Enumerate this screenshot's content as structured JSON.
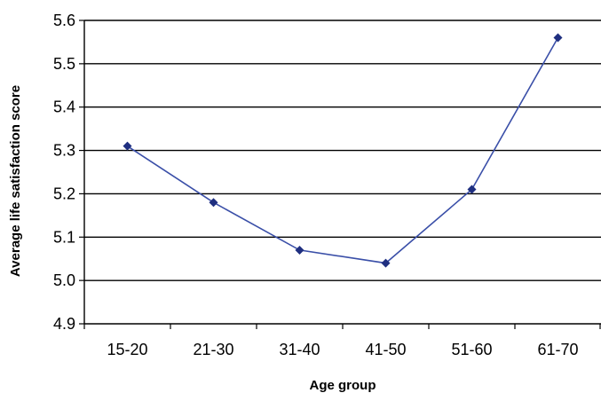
{
  "chart_data": {
    "type": "line",
    "title": "",
    "xlabel": "Age group",
    "ylabel": "Average life satisfaction score",
    "categories": [
      "15-20",
      "21-30",
      "31-40",
      "41-50",
      "51-60",
      "61-70"
    ],
    "series": [
      {
        "values": [
          5.31,
          5.18,
          5.07,
          5.04,
          5.21,
          5.56
        ],
        "color": "#3a4fa8"
      }
    ],
    "ylim": [
      4.9,
      5.6
    ],
    "yticks": [
      "4.9",
      "5.0",
      "5.1",
      "5.2",
      "5.3",
      "5.4",
      "5.5",
      "5.6"
    ],
    "grid": "horizontal",
    "legend": "none",
    "marker": "diamond"
  }
}
